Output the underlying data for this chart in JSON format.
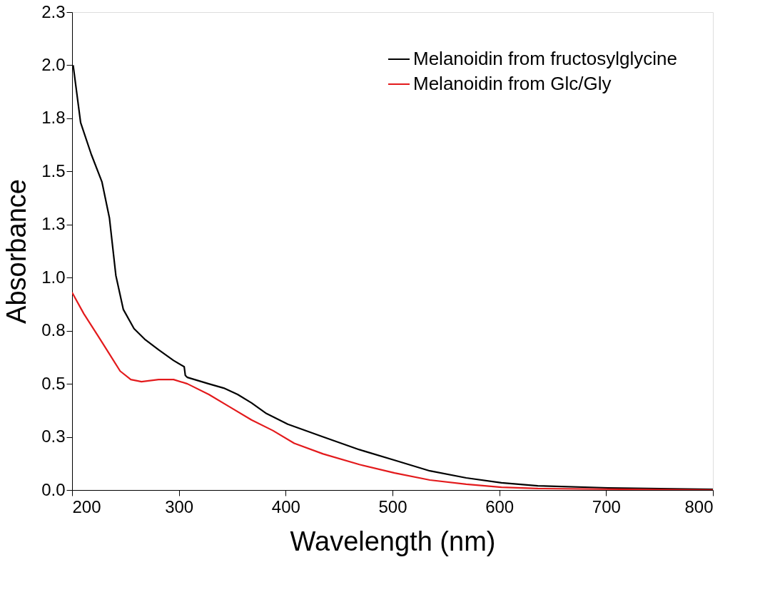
{
  "chart_data": {
    "type": "line",
    "xlabel": "Wavelength (nm)",
    "ylabel": "Absorbance",
    "xlim": [
      200,
      800
    ],
    "xticks": [
      200,
      300,
      400,
      500,
      600,
      700,
      800
    ],
    "ylim": [
      0,
      2.25
    ],
    "yticks": [
      {
        "value": 0,
        "label": "0.0"
      },
      {
        "value": 0.25,
        "label": "0.3"
      },
      {
        "value": 0.5,
        "label": "0.5"
      },
      {
        "value": 0.75,
        "label": "0.8"
      },
      {
        "value": 1.0,
        "label": "1.0"
      },
      {
        "value": 1.25,
        "label": "1.3"
      },
      {
        "value": 1.5,
        "label": "1.5"
      },
      {
        "value": 1.75,
        "label": "1.8"
      },
      {
        "value": 2.0,
        "label": "2.0"
      },
      {
        "value": 2.25,
        "label": "2.3"
      }
    ],
    "legend": "top right",
    "grid": false,
    "marker": "none",
    "line_style": "solid",
    "series": [
      {
        "name": "Melanoidin from fructosylglycine",
        "color": "#000000",
        "x": [
          201,
          208,
          218,
          228,
          235,
          241,
          248,
          258,
          268,
          281,
          295,
          305,
          306,
          308,
          328,
          342,
          355,
          368,
          382,
          402,
          435,
          469,
          502,
          535,
          569,
          602,
          636,
          702,
          800
        ],
        "values": [
          2.0,
          1.73,
          1.58,
          1.45,
          1.28,
          1.01,
          0.85,
          0.76,
          0.71,
          0.66,
          0.61,
          0.58,
          0.54,
          0.53,
          0.5,
          0.48,
          0.45,
          0.41,
          0.36,
          0.31,
          0.25,
          0.19,
          0.14,
          0.09,
          0.057,
          0.034,
          0.02,
          0.01,
          0.003
        ]
      },
      {
        "name": "Melanoidin from Glc/Gly",
        "color": "#e31a1c",
        "x": [
          200,
          211,
          225,
          235,
          245,
          255,
          265,
          281,
          295,
          308,
          328,
          348,
          368,
          388,
          408,
          435,
          469,
          502,
          535,
          569,
          602,
          636,
          800
        ],
        "values": [
          0.93,
          0.83,
          0.72,
          0.64,
          0.56,
          0.52,
          0.51,
          0.52,
          0.52,
          0.5,
          0.45,
          0.39,
          0.33,
          0.28,
          0.22,
          0.17,
          0.12,
          0.08,
          0.047,
          0.027,
          0.013,
          0.007,
          0.0
        ]
      }
    ]
  }
}
